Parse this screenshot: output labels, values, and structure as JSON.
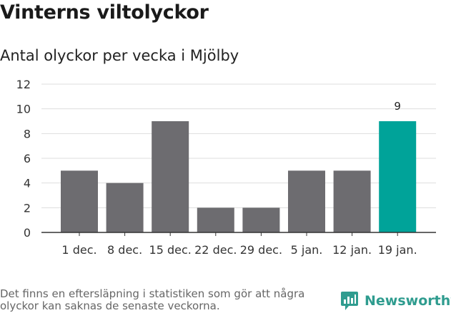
{
  "title": "Vinterns viltolyckor",
  "subtitle": "Antal olyckor per vecka i Mjölby",
  "footnote": "Det finns en eftersläpning i statistiken som gör att några olyckor kan saknas de senaste veckorna.",
  "brand": "Newsworthy",
  "colors": {
    "bar": "#6d6c70",
    "highlight": "#00a399",
    "grid": "#dddddd",
    "axis": "#333333",
    "brand": "#2f9c8f"
  },
  "chart_data": {
    "type": "bar",
    "categories": [
      "1 dec.",
      "8 dec.",
      "15 dec.",
      "22 dec.",
      "29 dec.",
      "5 jan.",
      "12 jan.",
      "19 jan."
    ],
    "values": [
      5,
      4,
      9,
      2,
      2,
      5,
      5,
      9
    ],
    "highlight_index": 7,
    "data_labels": [
      null,
      null,
      null,
      null,
      null,
      null,
      null,
      "9"
    ],
    "yticks": [
      0,
      2,
      4,
      6,
      8,
      10,
      12
    ],
    "ylim": [
      0,
      12
    ],
    "grid": true,
    "legend": false
  }
}
